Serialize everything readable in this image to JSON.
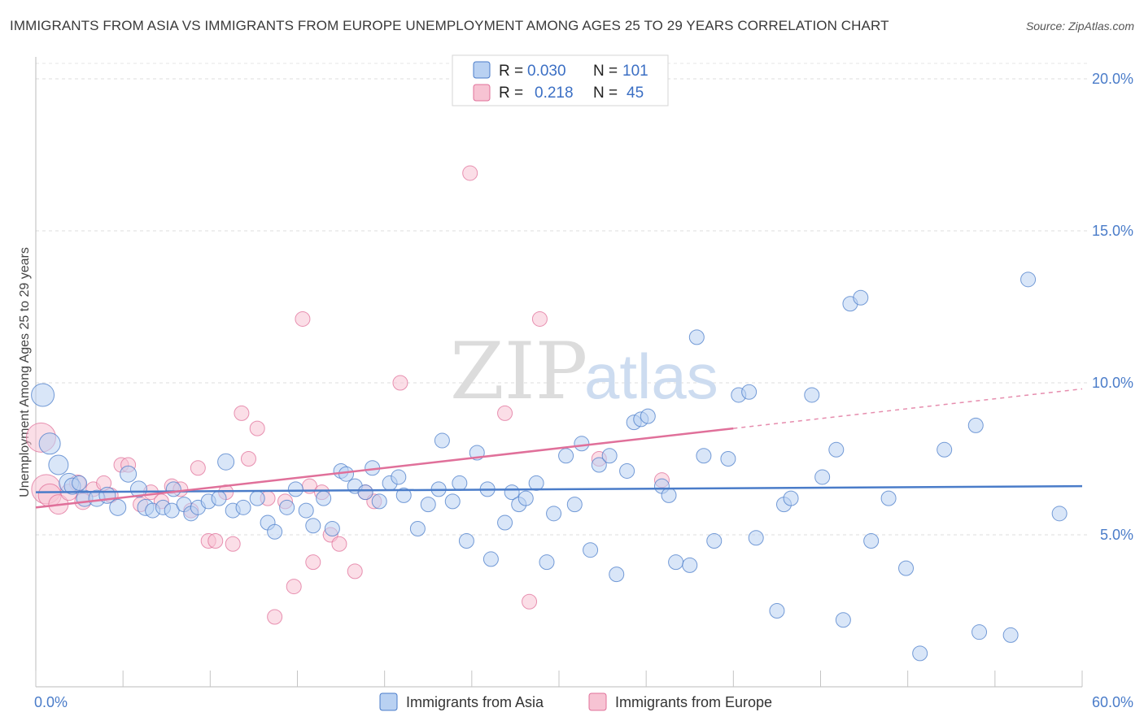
{
  "chart_data": {
    "type": "scatter",
    "title": "IMMIGRANTS FROM ASIA VS IMMIGRANTS FROM EUROPE UNEMPLOYMENT AMONG AGES 25 TO 29 YEARS CORRELATION CHART",
    "source": "Source: ZipAtlas.com",
    "ylabel": "Unemployment Among Ages 25 to 29 years",
    "xlim": [
      0,
      60
    ],
    "ylim": [
      0,
      21
    ],
    "x_tick_labels": [
      {
        "value": 0,
        "label": "0.0%"
      },
      {
        "value": 60,
        "label": "60.0%"
      }
    ],
    "y_tick_labels": [
      {
        "value": 5,
        "label": "5.0%"
      },
      {
        "value": 10,
        "label": "10.0%"
      },
      {
        "value": 15,
        "label": "15.0%"
      },
      {
        "value": 20,
        "label": "20.0%"
      }
    ],
    "watermark": {
      "zip": "ZIP",
      "atlas": "atlas"
    },
    "legend": {
      "r_label": "R =",
      "n_label": "N =",
      "entries": [
        {
          "r": "0.030",
          "n": "101"
        },
        {
          "r": "0.218",
          "n": "45"
        }
      ]
    },
    "series": [
      {
        "name": "Immigrants from Asia",
        "color": "#4a7cc9",
        "fill": "#b9d1f2",
        "trend": {
          "x0": 0,
          "y0": 6.4,
          "x1": 60,
          "y1": 6.6
        },
        "points": [
          [
            0.4,
            9.6,
            14
          ],
          [
            0.8,
            8.0,
            13
          ],
          [
            1.3,
            7.3,
            12
          ],
          [
            1.9,
            6.7,
            12
          ],
          [
            2.1,
            6.6,
            10
          ],
          [
            2.8,
            6.2,
            10
          ],
          [
            3.5,
            6.2,
            10
          ],
          [
            4.1,
            6.3,
            10
          ],
          [
            4.7,
            5.9,
            10
          ],
          [
            5.3,
            7.0,
            10
          ],
          [
            5.9,
            6.5,
            10
          ],
          [
            6.3,
            5.9,
            10
          ],
          [
            6.7,
            5.8,
            9
          ],
          [
            7.3,
            5.9,
            9
          ],
          [
            7.8,
            5.8,
            9
          ],
          [
            7.9,
            6.5,
            9
          ],
          [
            8.5,
            6.0,
            9
          ],
          [
            8.9,
            5.7,
            9
          ],
          [
            9.3,
            5.9,
            9
          ],
          [
            9.9,
            6.1,
            9
          ],
          [
            10.5,
            6.2,
            9
          ],
          [
            10.9,
            7.4,
            10
          ],
          [
            11.3,
            5.8,
            9
          ],
          [
            11.9,
            5.9,
            9
          ],
          [
            12.7,
            6.2,
            9
          ],
          [
            13.3,
            5.4,
            9
          ],
          [
            13.7,
            5.1,
            9
          ],
          [
            14.4,
            5.9,
            9
          ],
          [
            14.9,
            6.5,
            9
          ],
          [
            15.5,
            5.8,
            9
          ],
          [
            15.9,
            5.3,
            9
          ],
          [
            16.5,
            6.2,
            9
          ],
          [
            17.0,
            5.2,
            9
          ],
          [
            17.5,
            7.1,
            9
          ],
          [
            17.8,
            7.0,
            9
          ],
          [
            18.3,
            6.6,
            9
          ],
          [
            18.9,
            6.4,
            9
          ],
          [
            19.3,
            7.2,
            9
          ],
          [
            19.7,
            6.1,
            9
          ],
          [
            20.3,
            6.7,
            9
          ],
          [
            20.8,
            6.9,
            9
          ],
          [
            21.1,
            6.3,
            9
          ],
          [
            21.9,
            5.2,
            9
          ],
          [
            22.5,
            6.0,
            9
          ],
          [
            23.1,
            6.5,
            9
          ],
          [
            23.3,
            8.1,
            9
          ],
          [
            23.9,
            6.1,
            9
          ],
          [
            24.3,
            6.7,
            9
          ],
          [
            24.7,
            4.8,
            9
          ],
          [
            25.3,
            7.7,
            9
          ],
          [
            25.9,
            6.5,
            9
          ],
          [
            26.1,
            4.2,
            9
          ],
          [
            26.9,
            5.4,
            9
          ],
          [
            27.3,
            6.4,
            9
          ],
          [
            27.7,
            6.0,
            9
          ],
          [
            28.1,
            6.2,
            9
          ],
          [
            28.7,
            6.7,
            9
          ],
          [
            29.3,
            4.1,
            9
          ],
          [
            29.7,
            5.7,
            9
          ],
          [
            30.4,
            7.6,
            9
          ],
          [
            30.9,
            6.0,
            9
          ],
          [
            31.3,
            8.0,
            9
          ],
          [
            31.8,
            4.5,
            9
          ],
          [
            32.3,
            7.3,
            9
          ],
          [
            32.9,
            7.6,
            9
          ],
          [
            33.3,
            3.7,
            9
          ],
          [
            33.9,
            7.1,
            9
          ],
          [
            34.3,
            8.7,
            9
          ],
          [
            34.7,
            8.8,
            9
          ],
          [
            35.1,
            8.9,
            9
          ],
          [
            35.9,
            6.6,
            9
          ],
          [
            36.3,
            6.3,
            9
          ],
          [
            36.7,
            4.1,
            9
          ],
          [
            37.5,
            4.0,
            9
          ],
          [
            37.9,
            11.5,
            9
          ],
          [
            38.3,
            7.6,
            9
          ],
          [
            38.9,
            4.8,
            9
          ],
          [
            39.7,
            7.5,
            9
          ],
          [
            40.3,
            9.6,
            9
          ],
          [
            40.9,
            9.7,
            9
          ],
          [
            41.3,
            4.9,
            9
          ],
          [
            42.5,
            2.5,
            9
          ],
          [
            42.9,
            6.0,
            9
          ],
          [
            43.3,
            6.2,
            9
          ],
          [
            44.5,
            9.6,
            9
          ],
          [
            45.1,
            6.9,
            9
          ],
          [
            45.9,
            7.8,
            9
          ],
          [
            46.3,
            2.2,
            9
          ],
          [
            46.7,
            12.6,
            9
          ],
          [
            47.3,
            12.8,
            9
          ],
          [
            47.9,
            4.8,
            9
          ],
          [
            48.9,
            6.2,
            9
          ],
          [
            49.9,
            3.9,
            9
          ],
          [
            50.7,
            1.1,
            9
          ],
          [
            52.1,
            7.8,
            9
          ],
          [
            53.9,
            8.6,
            9
          ],
          [
            54.1,
            1.8,
            9
          ],
          [
            55.9,
            1.7,
            9
          ],
          [
            56.9,
            13.4,
            9
          ],
          [
            58.7,
            5.7,
            9
          ],
          [
            2.5,
            6.7,
            9
          ]
        ]
      },
      {
        "name": "Immigrants from Europe",
        "color": "#e0709a",
        "fill": "#f7c3d3",
        "trend": {
          "x0": 0,
          "y0": 5.9,
          "x1": 40,
          "y1": 8.5
        },
        "trend_ext": {
          "x0": 40,
          "y0": 8.5,
          "x1": 60,
          "y1": 9.8
        },
        "points": [
          [
            0.3,
            8.2,
            18
          ],
          [
            0.6,
            6.5,
            18
          ],
          [
            0.8,
            6.3,
            14
          ],
          [
            1.3,
            6.0,
            12
          ],
          [
            1.9,
            6.4,
            10
          ],
          [
            2.4,
            6.7,
            10
          ],
          [
            2.7,
            6.1,
            10
          ],
          [
            3.3,
            6.5,
            9
          ],
          [
            3.9,
            6.7,
            9
          ],
          [
            4.3,
            6.3,
            9
          ],
          [
            4.9,
            7.3,
            9
          ],
          [
            5.3,
            7.3,
            9
          ],
          [
            6.0,
            6.0,
            9
          ],
          [
            6.6,
            6.4,
            9
          ],
          [
            7.2,
            6.1,
            9
          ],
          [
            7.8,
            6.6,
            9
          ],
          [
            8.3,
            6.5,
            9
          ],
          [
            8.9,
            5.8,
            9
          ],
          [
            9.3,
            7.2,
            9
          ],
          [
            9.9,
            4.8,
            9
          ],
          [
            10.3,
            4.8,
            9
          ],
          [
            10.9,
            6.4,
            9
          ],
          [
            11.3,
            4.7,
            9
          ],
          [
            11.8,
            9.0,
            9
          ],
          [
            12.2,
            7.5,
            9
          ],
          [
            12.7,
            8.5,
            9
          ],
          [
            13.3,
            6.2,
            9
          ],
          [
            13.7,
            2.3,
            9
          ],
          [
            14.3,
            6.1,
            9
          ],
          [
            14.8,
            3.3,
            9
          ],
          [
            15.3,
            12.1,
            9
          ],
          [
            15.7,
            6.6,
            9
          ],
          [
            15.9,
            4.1,
            9
          ],
          [
            16.4,
            6.4,
            9
          ],
          [
            16.9,
            5.0,
            9
          ],
          [
            17.4,
            4.7,
            9
          ],
          [
            18.3,
            3.8,
            9
          ],
          [
            18.9,
            6.4,
            9
          ],
          [
            19.4,
            6.1,
            9
          ],
          [
            20.9,
            10.0,
            9
          ],
          [
            24.9,
            16.9,
            9
          ],
          [
            26.9,
            9.0,
            9
          ],
          [
            28.9,
            12.1,
            9
          ],
          [
            28.3,
            2.8,
            9
          ],
          [
            32.3,
            7.5,
            9
          ],
          [
            35.9,
            6.8,
            9
          ]
        ]
      }
    ]
  }
}
